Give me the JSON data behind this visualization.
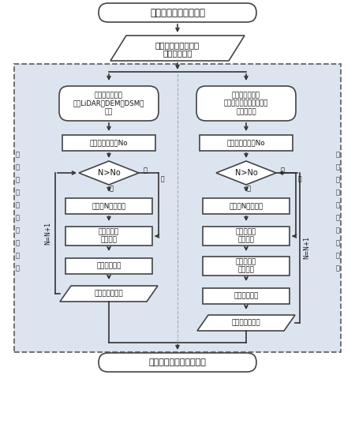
{
  "title": "房屋矢量化的相关原理",
  "node1_l1": "房屋斑块（或房屋点",
  "node1_l2": "集、边缘线）",
  "left_branch": "有高程信息参加\n（以LiDAR、DEM、DSM为\n主）",
  "right_branch": "无高程信息参加\n（以卫星、航空、无人机\n影像为主）",
  "count_box": "计算建筑物数目No",
  "diamond_text": "N>No",
  "yes_text": "否",
  "no_text": "是",
  "extract_l": "提取第N个建筑物",
  "extract_r": "提取第N个建筑物",
  "segment": "边缘线段的\n多类分割",
  "corner_l": "拐角点的计算",
  "contour_l": "建筑物轮廓信息",
  "locate": "边缘线段的\n精确定位",
  "corner_r": "拐角点的计算",
  "contour_r": "建筑物轮廓信息",
  "bottom_box": "房屋矢量化结果质量评价",
  "n_update": "N=N+1",
  "left_side": "房屋提取结果精度较高",
  "right_side": "房屋提取结果精度一般",
  "bg_color": "#dce4f0",
  "box_fill": "#ffffff",
  "box_edge": "#444444",
  "arrow_color": "#333333",
  "dash_color": "#666666",
  "font_color": "#111111",
  "divider_color": "#aaaaaa"
}
